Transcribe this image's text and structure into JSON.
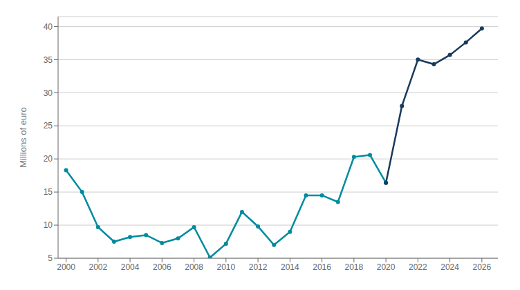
{
  "chart_data": {
    "type": "line",
    "ylabel": "Millions of euro",
    "x": [
      2000,
      2001,
      2002,
      2003,
      2004,
      2005,
      2006,
      2007,
      2008,
      2009,
      2010,
      2011,
      2012,
      2013,
      2014,
      2015,
      2016,
      2017,
      2018,
      2019,
      2020,
      2021,
      2022,
      2023,
      2024,
      2025,
      2026
    ],
    "series": [
      {
        "color": "#008B9E",
        "marker": "circle",
        "values": [
          18.3,
          15.0,
          9.7,
          7.5,
          8.2,
          8.5,
          7.3,
          8.0,
          9.7,
          5.1,
          7.2,
          12.0,
          9.8,
          7.0,
          9.0,
          14.5,
          14.5,
          13.5,
          20.3,
          20.6,
          16.4,
          null,
          null,
          null,
          null,
          null,
          null
        ]
      },
      {
        "color": "#1A3A5C",
        "marker": "circle",
        "values": [
          null,
          null,
          null,
          null,
          null,
          null,
          null,
          null,
          null,
          null,
          null,
          null,
          null,
          null,
          null,
          null,
          null,
          null,
          null,
          null,
          16.4,
          28.0,
          35.0,
          34.3,
          35.7,
          37.6,
          39.7
        ]
      }
    ],
    "xlim": [
      1999.5,
      2027.0
    ],
    "xticks": [
      2000,
      2002,
      2004,
      2006,
      2008,
      2010,
      2012,
      2014,
      2016,
      2018,
      2020,
      2022,
      2024,
      2026
    ],
    "ylim": [
      5,
      41.5
    ],
    "yticks": [
      5,
      10,
      15,
      20,
      25,
      30,
      35,
      40
    ],
    "grid": true
  }
}
